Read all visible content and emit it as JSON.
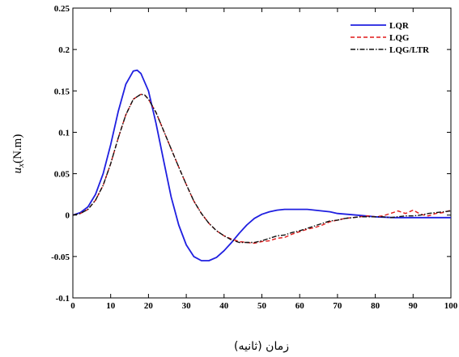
{
  "chart_data": {
    "type": "line",
    "xlabel": "زمان (ثانیه)",
    "ylabel": {
      "symbol": "u",
      "subscript": "x",
      "unit": "(N.m)"
    },
    "xlim": [
      0,
      100
    ],
    "ylim": [
      -0.1,
      0.25
    ],
    "xticks": [
      "0",
      "10",
      "20",
      "30",
      "40",
      "50",
      "60",
      "70",
      "80",
      "90",
      "100"
    ],
    "yticks": [
      "-0.1",
      "-0.05",
      "0",
      "0.05",
      "0.1",
      "0.15",
      "0.2",
      "0.25"
    ],
    "grid": false,
    "legend_position": "top-right",
    "series": [
      {
        "name": "LQR",
        "color": "#1f1fe0",
        "dash": "solid",
        "x": [
          0,
          2,
          4,
          6,
          8,
          10,
          12,
          14,
          16,
          17,
          18,
          20,
          22,
          24,
          26,
          28,
          30,
          32,
          34,
          36,
          38,
          40,
          42,
          44,
          46,
          48,
          50,
          52,
          54,
          56,
          58,
          60,
          62,
          64,
          66,
          68,
          70,
          75,
          80,
          85,
          90,
          95,
          100
        ],
        "y": [
          0.0,
          0.003,
          0.01,
          0.025,
          0.05,
          0.085,
          0.125,
          0.158,
          0.174,
          0.175,
          0.171,
          0.15,
          0.111,
          0.066,
          0.022,
          -0.012,
          -0.036,
          -0.05,
          -0.055,
          -0.055,
          -0.051,
          -0.043,
          -0.033,
          -0.022,
          -0.012,
          -0.004,
          0.001,
          0.004,
          0.006,
          0.007,
          0.007,
          0.007,
          0.007,
          0.006,
          0.005,
          0.004,
          0.002,
          0.0,
          -0.002,
          -0.003,
          -0.003,
          -0.003,
          -0.003
        ]
      },
      {
        "name": "LQG",
        "color": "#e01818",
        "dash": "dashed",
        "x": [
          0,
          2,
          4,
          6,
          8,
          10,
          12,
          14,
          16,
          18,
          19,
          20,
          22,
          24,
          26,
          28,
          30,
          32,
          34,
          36,
          38,
          40,
          42,
          44,
          46,
          48,
          50,
          52,
          54,
          56,
          58,
          60,
          62,
          64,
          66,
          68,
          70,
          72,
          74,
          76,
          78,
          80,
          82,
          84,
          86,
          88,
          90,
          92,
          94,
          96,
          98,
          100
        ],
        "y": [
          0.0,
          0.002,
          0.007,
          0.018,
          0.036,
          0.062,
          0.093,
          0.121,
          0.14,
          0.146,
          0.145,
          0.14,
          0.124,
          0.102,
          0.08,
          0.058,
          0.037,
          0.017,
          0.002,
          -0.01,
          -0.019,
          -0.025,
          -0.029,
          -0.032,
          -0.033,
          -0.034,
          -0.032,
          -0.031,
          -0.028,
          -0.027,
          -0.023,
          -0.02,
          -0.017,
          -0.015,
          -0.012,
          -0.008,
          -0.006,
          -0.004,
          -0.003,
          -0.002,
          -0.001,
          -0.002,
          -0.001,
          0.002,
          0.005,
          0.002,
          0.006,
          0.001,
          -0.001,
          0.002,
          0.003,
          0.006
        ]
      },
      {
        "name": "LQG/LTR",
        "color": "#111111",
        "dash": "dashdot",
        "x": [
          0,
          2,
          4,
          6,
          8,
          10,
          12,
          14,
          16,
          18,
          19,
          20,
          22,
          24,
          26,
          28,
          30,
          32,
          34,
          36,
          38,
          40,
          42,
          44,
          46,
          48,
          50,
          52,
          54,
          56,
          58,
          60,
          62,
          64,
          66,
          68,
          70,
          72,
          74,
          76,
          78,
          80,
          82,
          84,
          86,
          88,
          90,
          92,
          94,
          96,
          98,
          100
        ],
        "y": [
          0.0,
          0.002,
          0.007,
          0.018,
          0.036,
          0.062,
          0.093,
          0.121,
          0.14,
          0.146,
          0.145,
          0.14,
          0.124,
          0.102,
          0.08,
          0.058,
          0.037,
          0.017,
          0.002,
          -0.01,
          -0.019,
          -0.025,
          -0.03,
          -0.033,
          -0.033,
          -0.033,
          -0.031,
          -0.028,
          -0.025,
          -0.024,
          -0.021,
          -0.019,
          -0.016,
          -0.013,
          -0.01,
          -0.007,
          -0.006,
          -0.004,
          -0.003,
          -0.002,
          -0.002,
          -0.002,
          -0.002,
          -0.003,
          -0.002,
          -0.001,
          -0.001,
          0.0,
          0.002,
          0.003,
          0.004,
          0.005
        ]
      }
    ]
  }
}
